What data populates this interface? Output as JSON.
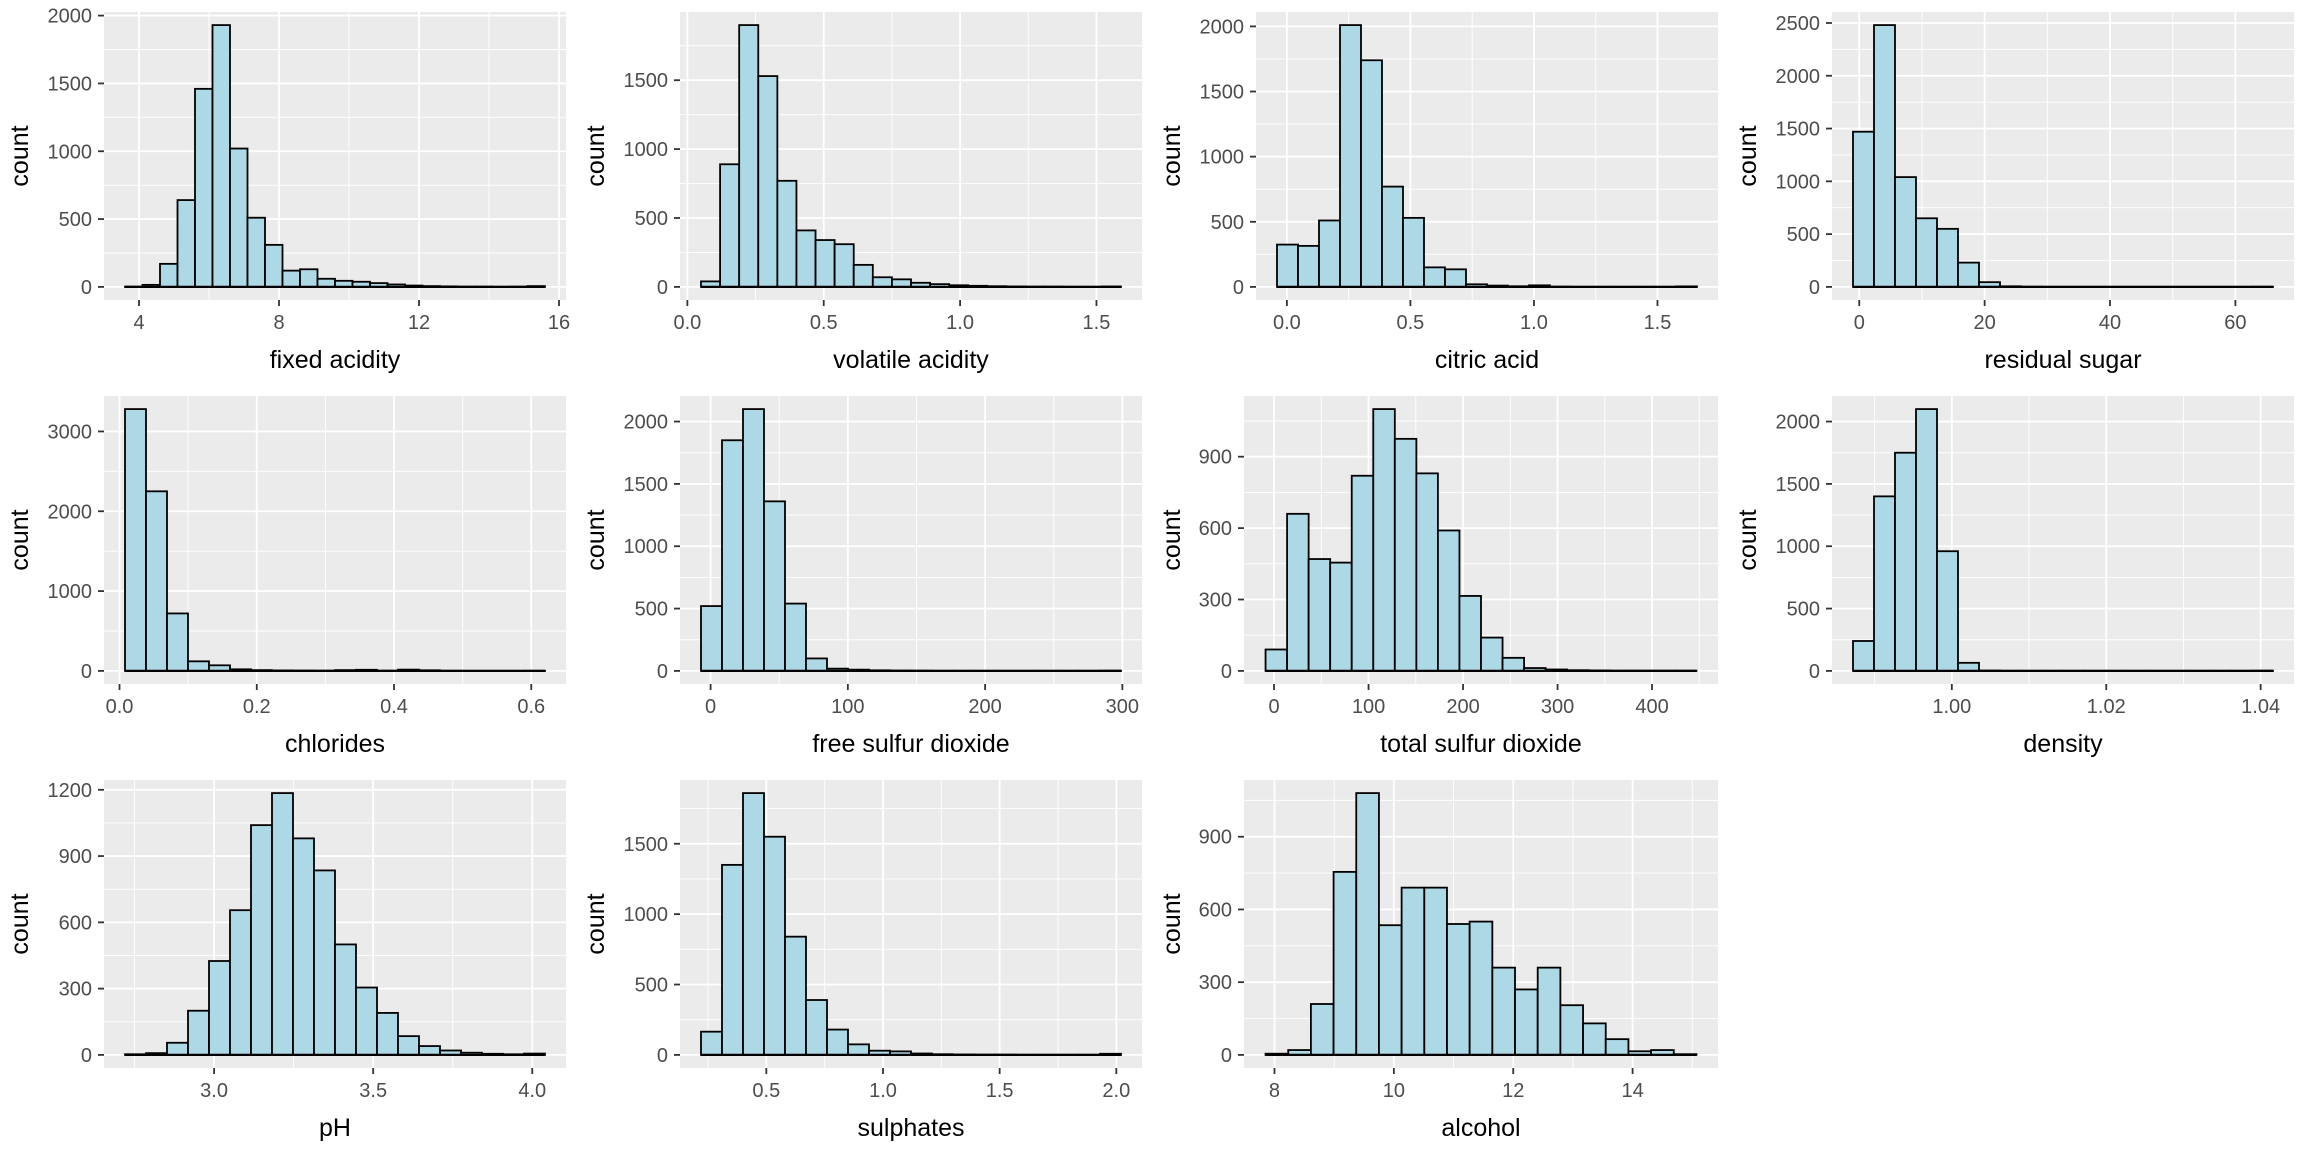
{
  "figure": {
    "description": "Grid of 11 histograms of wine physicochemical attributes",
    "shared_ylabel": "count"
  },
  "style": {
    "panel_bg": "#EBEBEB",
    "grid_color": "#FFFFFF",
    "bar_fill": "#ADD8E6",
    "bar_stroke": "#000000",
    "tick_label_color": "#4D4D4D",
    "axis_title_color": "#000000",
    "tick_mark_color": "#333333"
  },
  "chart_data": [
    {
      "type": "bar",
      "subtype": "histogram",
      "xlabel": "fixed acidity",
      "ylabel": "count",
      "row": 0,
      "col": 0,
      "bin_start": 3.6,
      "bin_width": 0.5,
      "counts": [
        2,
        15,
        170,
        640,
        1460,
        1930,
        1020,
        510,
        310,
        120,
        130,
        60,
        45,
        38,
        28,
        18,
        10,
        6,
        4,
        2,
        2,
        1,
        2,
        6
      ],
      "x_ticks": [
        4,
        8,
        12,
        16
      ],
      "x_tick_labels": [
        "4",
        "8",
        "12",
        "16"
      ],
      "y_ticks": [
        0,
        500,
        1000,
        1500,
        2000
      ],
      "y_tick_labels": [
        "0",
        "500",
        "1000",
        "1500",
        "2000"
      ]
    },
    {
      "type": "bar",
      "subtype": "histogram",
      "xlabel": "volatile acidity",
      "ylabel": "count",
      "row": 0,
      "col": 1,
      "bin_start": 0.05,
      "bin_width": 0.07,
      "counts": [
        40,
        890,
        1900,
        1530,
        770,
        410,
        340,
        310,
        160,
        70,
        55,
        30,
        20,
        12,
        8,
        5,
        3,
        2,
        2,
        1,
        1,
        3
      ],
      "x_ticks": [
        0,
        0.5,
        1,
        1.5
      ],
      "x_tick_labels": [
        "0.0",
        "0.5",
        "1.0",
        "1.5"
      ],
      "y_ticks": [
        0,
        500,
        1000,
        1500
      ],
      "y_tick_labels": [
        "0",
        "500",
        "1000",
        "1500"
      ]
    },
    {
      "type": "bar",
      "subtype": "histogram",
      "xlabel": "citric acid",
      "ylabel": "count",
      "row": 0,
      "col": 2,
      "bin_start": -0.04,
      "bin_width": 0.085,
      "counts": [
        325,
        315,
        510,
        2010,
        1740,
        770,
        530,
        150,
        135,
        20,
        10,
        5,
        12,
        2,
        1,
        1,
        1,
        1,
        1,
        4
      ],
      "x_ticks": [
        0,
        0.5,
        1,
        1.5
      ],
      "x_tick_labels": [
        "0.0",
        "0.5",
        "1.0",
        "1.5"
      ],
      "y_ticks": [
        0,
        500,
        1000,
        1500,
        2000
      ],
      "y_tick_labels": [
        "0",
        "500",
        "1000",
        "1500",
        "2000"
      ]
    },
    {
      "type": "bar",
      "subtype": "histogram",
      "xlabel": "residual sugar",
      "ylabel": "count",
      "row": 0,
      "col": 3,
      "bin_start": -1.0,
      "bin_width": 3.35,
      "counts": [
        1470,
        2480,
        1040,
        650,
        550,
        230,
        45,
        6,
        2,
        1,
        1,
        1,
        1,
        1,
        1,
        1,
        1,
        1,
        1,
        2
      ],
      "x_ticks": [
        0,
        20,
        40,
        60
      ],
      "x_tick_labels": [
        "0",
        "20",
        "40",
        "60"
      ],
      "y_ticks": [
        0,
        500,
        1000,
        1500,
        2000,
        2500
      ],
      "y_tick_labels": [
        "0",
        "500",
        "1000",
        "1500",
        "2000",
        "2500"
      ]
    },
    {
      "type": "bar",
      "subtype": "histogram",
      "xlabel": "chlorides",
      "ylabel": "count",
      "row": 1,
      "col": 0,
      "bin_start": 0.008,
      "bin_width": 0.0306,
      "counts": [
        3280,
        2250,
        720,
        120,
        70,
        20,
        10,
        6,
        4,
        3,
        10,
        14,
        3,
        16,
        8,
        2,
        1,
        1,
        1,
        2
      ],
      "x_ticks": [
        0,
        0.2,
        0.4,
        0.6
      ],
      "x_tick_labels": [
        "0.0",
        "0.2",
        "0.4",
        "0.6"
      ],
      "y_ticks": [
        0,
        1000,
        2000,
        3000
      ],
      "y_tick_labels": [
        "0",
        "1000",
        "2000",
        "3000"
      ]
    },
    {
      "type": "bar",
      "subtype": "histogram",
      "xlabel": "free sulfur dioxide",
      "ylabel": "count",
      "row": 1,
      "col": 1,
      "bin_start": -7,
      "bin_width": 15.3,
      "counts": [
        520,
        1850,
        2100,
        1360,
        540,
        100,
        18,
        10,
        5,
        3,
        2,
        1,
        1,
        1,
        1,
        1,
        1,
        1,
        1,
        2
      ],
      "x_ticks": [
        0,
        100,
        200,
        300
      ],
      "x_tick_labels": [
        "0",
        "100",
        "200",
        "300"
      ],
      "y_ticks": [
        0,
        500,
        1000,
        1500,
        2000
      ],
      "y_tick_labels": [
        "0",
        "500",
        "1000",
        "1500",
        "2000"
      ]
    },
    {
      "type": "bar",
      "subtype": "histogram",
      "xlabel": "total sulfur dioxide",
      "ylabel": "count",
      "row": 1,
      "col": 2,
      "bin_start": -9,
      "bin_width": 22.8,
      "counts": [
        90,
        660,
        470,
        455,
        820,
        1100,
        975,
        830,
        590,
        315,
        140,
        55,
        12,
        6,
        3,
        2,
        1,
        1,
        1,
        1
      ],
      "x_ticks": [
        0,
        100,
        200,
        300,
        400
      ],
      "x_tick_labels": [
        "0",
        "100",
        "200",
        "300",
        "400"
      ],
      "y_ticks": [
        0,
        300,
        600,
        900
      ],
      "y_tick_labels": [
        "0",
        "300",
        "600",
        "900"
      ]
    },
    {
      "type": "bar",
      "subtype": "histogram",
      "xlabel": "density",
      "ylabel": "count",
      "row": 1,
      "col": 3,
      "bin_start": 0.9872,
      "bin_width": 0.00272,
      "counts": [
        240,
        1400,
        1750,
        2100,
        960,
        65,
        3,
        1,
        1,
        1,
        1,
        1,
        1,
        1,
        1,
        1,
        1,
        1,
        1,
        2
      ],
      "x_ticks": [
        1.0,
        1.02,
        1.04
      ],
      "x_tick_labels": [
        "1.00",
        "1.02",
        "1.04"
      ],
      "y_ticks": [
        0,
        500,
        1000,
        1500,
        2000
      ],
      "y_tick_labels": [
        "0",
        "500",
        "1000",
        "1500",
        "2000"
      ]
    },
    {
      "type": "bar",
      "subtype": "histogram",
      "xlabel": "pH",
      "ylabel": "count",
      "row": 2,
      "col": 0,
      "bin_start": 2.72,
      "bin_width": 0.066,
      "counts": [
        3,
        8,
        55,
        200,
        425,
        655,
        1040,
        1185,
        980,
        835,
        500,
        305,
        190,
        85,
        40,
        20,
        10,
        5,
        3,
        6
      ],
      "x_ticks": [
        3.0,
        3.5,
        4.0
      ],
      "x_tick_labels": [
        "3.0",
        "3.5",
        "4.0"
      ],
      "y_ticks": [
        0,
        300,
        600,
        900,
        1200
      ],
      "y_tick_labels": [
        "0",
        "300",
        "600",
        "900",
        "1200"
      ]
    },
    {
      "type": "bar",
      "subtype": "histogram",
      "xlabel": "sulphates",
      "ylabel": "count",
      "row": 2,
      "col": 1,
      "bin_start": 0.22,
      "bin_width": 0.09,
      "counts": [
        165,
        1350,
        1860,
        1550,
        840,
        390,
        180,
        75,
        30,
        25,
        10,
        5,
        3,
        2,
        2,
        1,
        1,
        1,
        1,
        8
      ],
      "x_ticks": [
        0.5,
        1.0,
        1.5,
        2.0
      ],
      "x_tick_labels": [
        "0.5",
        "1.0",
        "1.5",
        "2.0"
      ],
      "y_ticks": [
        0,
        500,
        1000,
        1500
      ],
      "y_tick_labels": [
        "0",
        "500",
        "1000",
        "1500"
      ]
    },
    {
      "type": "bar",
      "subtype": "histogram",
      "xlabel": "alcohol",
      "ylabel": "count",
      "row": 2,
      "col": 2,
      "bin_start": 7.85,
      "bin_width": 0.38,
      "counts": [
        5,
        20,
        210,
        755,
        1080,
        535,
        690,
        690,
        540,
        550,
        360,
        270,
        360,
        205,
        130,
        65,
        15,
        20,
        3
      ],
      "x_ticks": [
        8,
        10,
        12,
        14
      ],
      "x_tick_labels": [
        "8",
        "10",
        "12",
        "14"
      ],
      "y_ticks": [
        0,
        300,
        600,
        900
      ],
      "y_tick_labels": [
        "0",
        "300",
        "600",
        "900"
      ]
    }
  ]
}
